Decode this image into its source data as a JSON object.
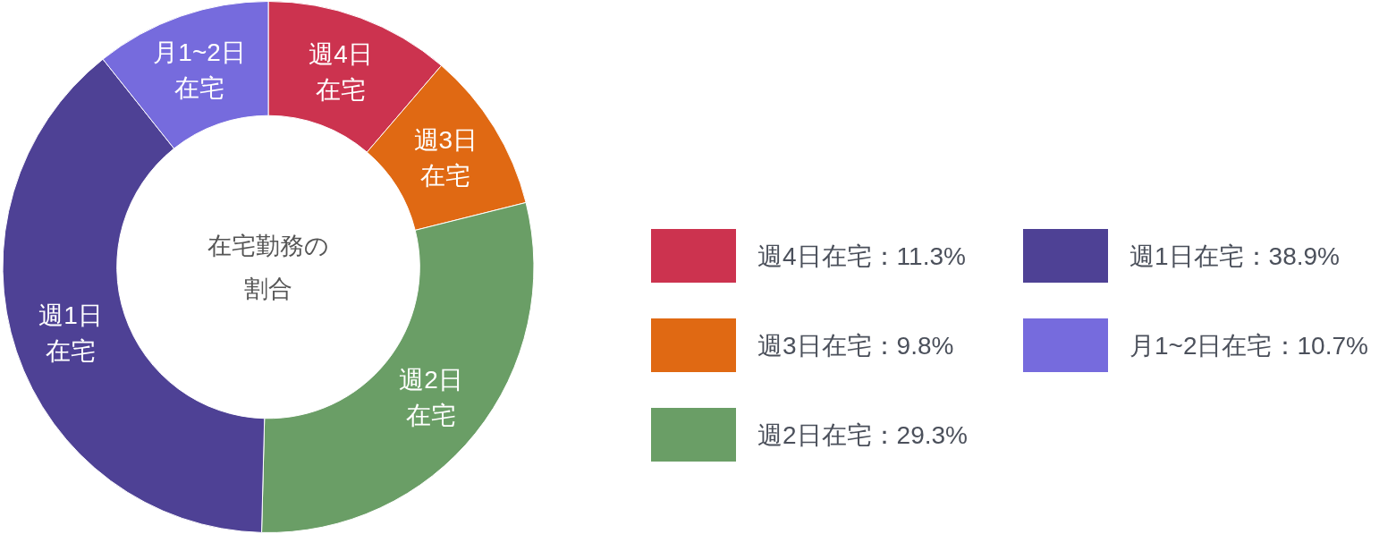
{
  "chart_data": {
    "type": "donut",
    "title": "在宅勤務の割合",
    "categories": [
      "週4日在宅",
      "週3日在宅",
      "週2日在宅",
      "週1日在宅",
      "月1~2日在宅"
    ],
    "values": [
      11.3,
      9.8,
      29.3,
      38.9,
      10.7
    ],
    "colors": [
      "#cc334f",
      "#e06913",
      "#6a9e66",
      "#4e4195",
      "#766bdd"
    ],
    "value_labels": [
      "：11.3%",
      "：9.8%",
      "：29.3%",
      "：38.9%",
      "：10.7%"
    ],
    "legend": "right"
  }
}
